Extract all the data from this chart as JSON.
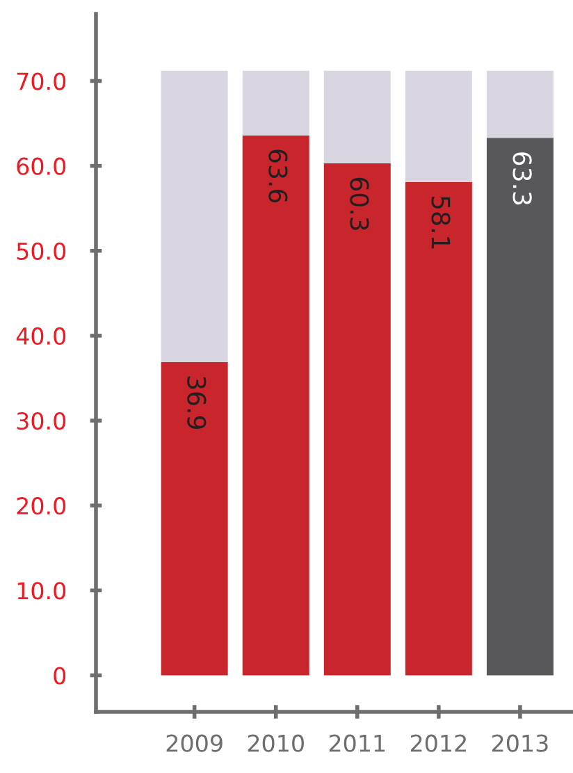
{
  "chart_data": {
    "type": "bar",
    "stacked": true,
    "categories": [
      "2009",
      "2010",
      "2011",
      "2012",
      "2013"
    ],
    "series": [
      {
        "colors": [
          "#c9252c",
          "#c9252c",
          "#c9252c",
          "#c9252c",
          "#58585a"
        ],
        "values": [
          36.9,
          63.6,
          60.3,
          58.1,
          63.3
        ],
        "value_labels": [
          "36.9",
          "63.6",
          "60.3",
          "58.1",
          "63.3"
        ]
      },
      {
        "color": "#d9d6e1",
        "values": [
          34.3,
          7.6,
          10.9,
          13.1,
          7.9
        ]
      }
    ],
    "ylim": [
      -4.3,
      77.9
    ],
    "yticks": [
      {
        "value": 0,
        "label": "0"
      },
      {
        "value": 10,
        "label": "10.0"
      },
      {
        "value": 20,
        "label": "20.0"
      },
      {
        "value": 30,
        "label": "30.0"
      },
      {
        "value": 40,
        "label": "40.0"
      },
      {
        "value": 50,
        "label": "50.0"
      },
      {
        "value": 60,
        "label": "60.0"
      },
      {
        "value": 70,
        "label": "70.0"
      }
    ],
    "grid": false,
    "legend": false
  }
}
